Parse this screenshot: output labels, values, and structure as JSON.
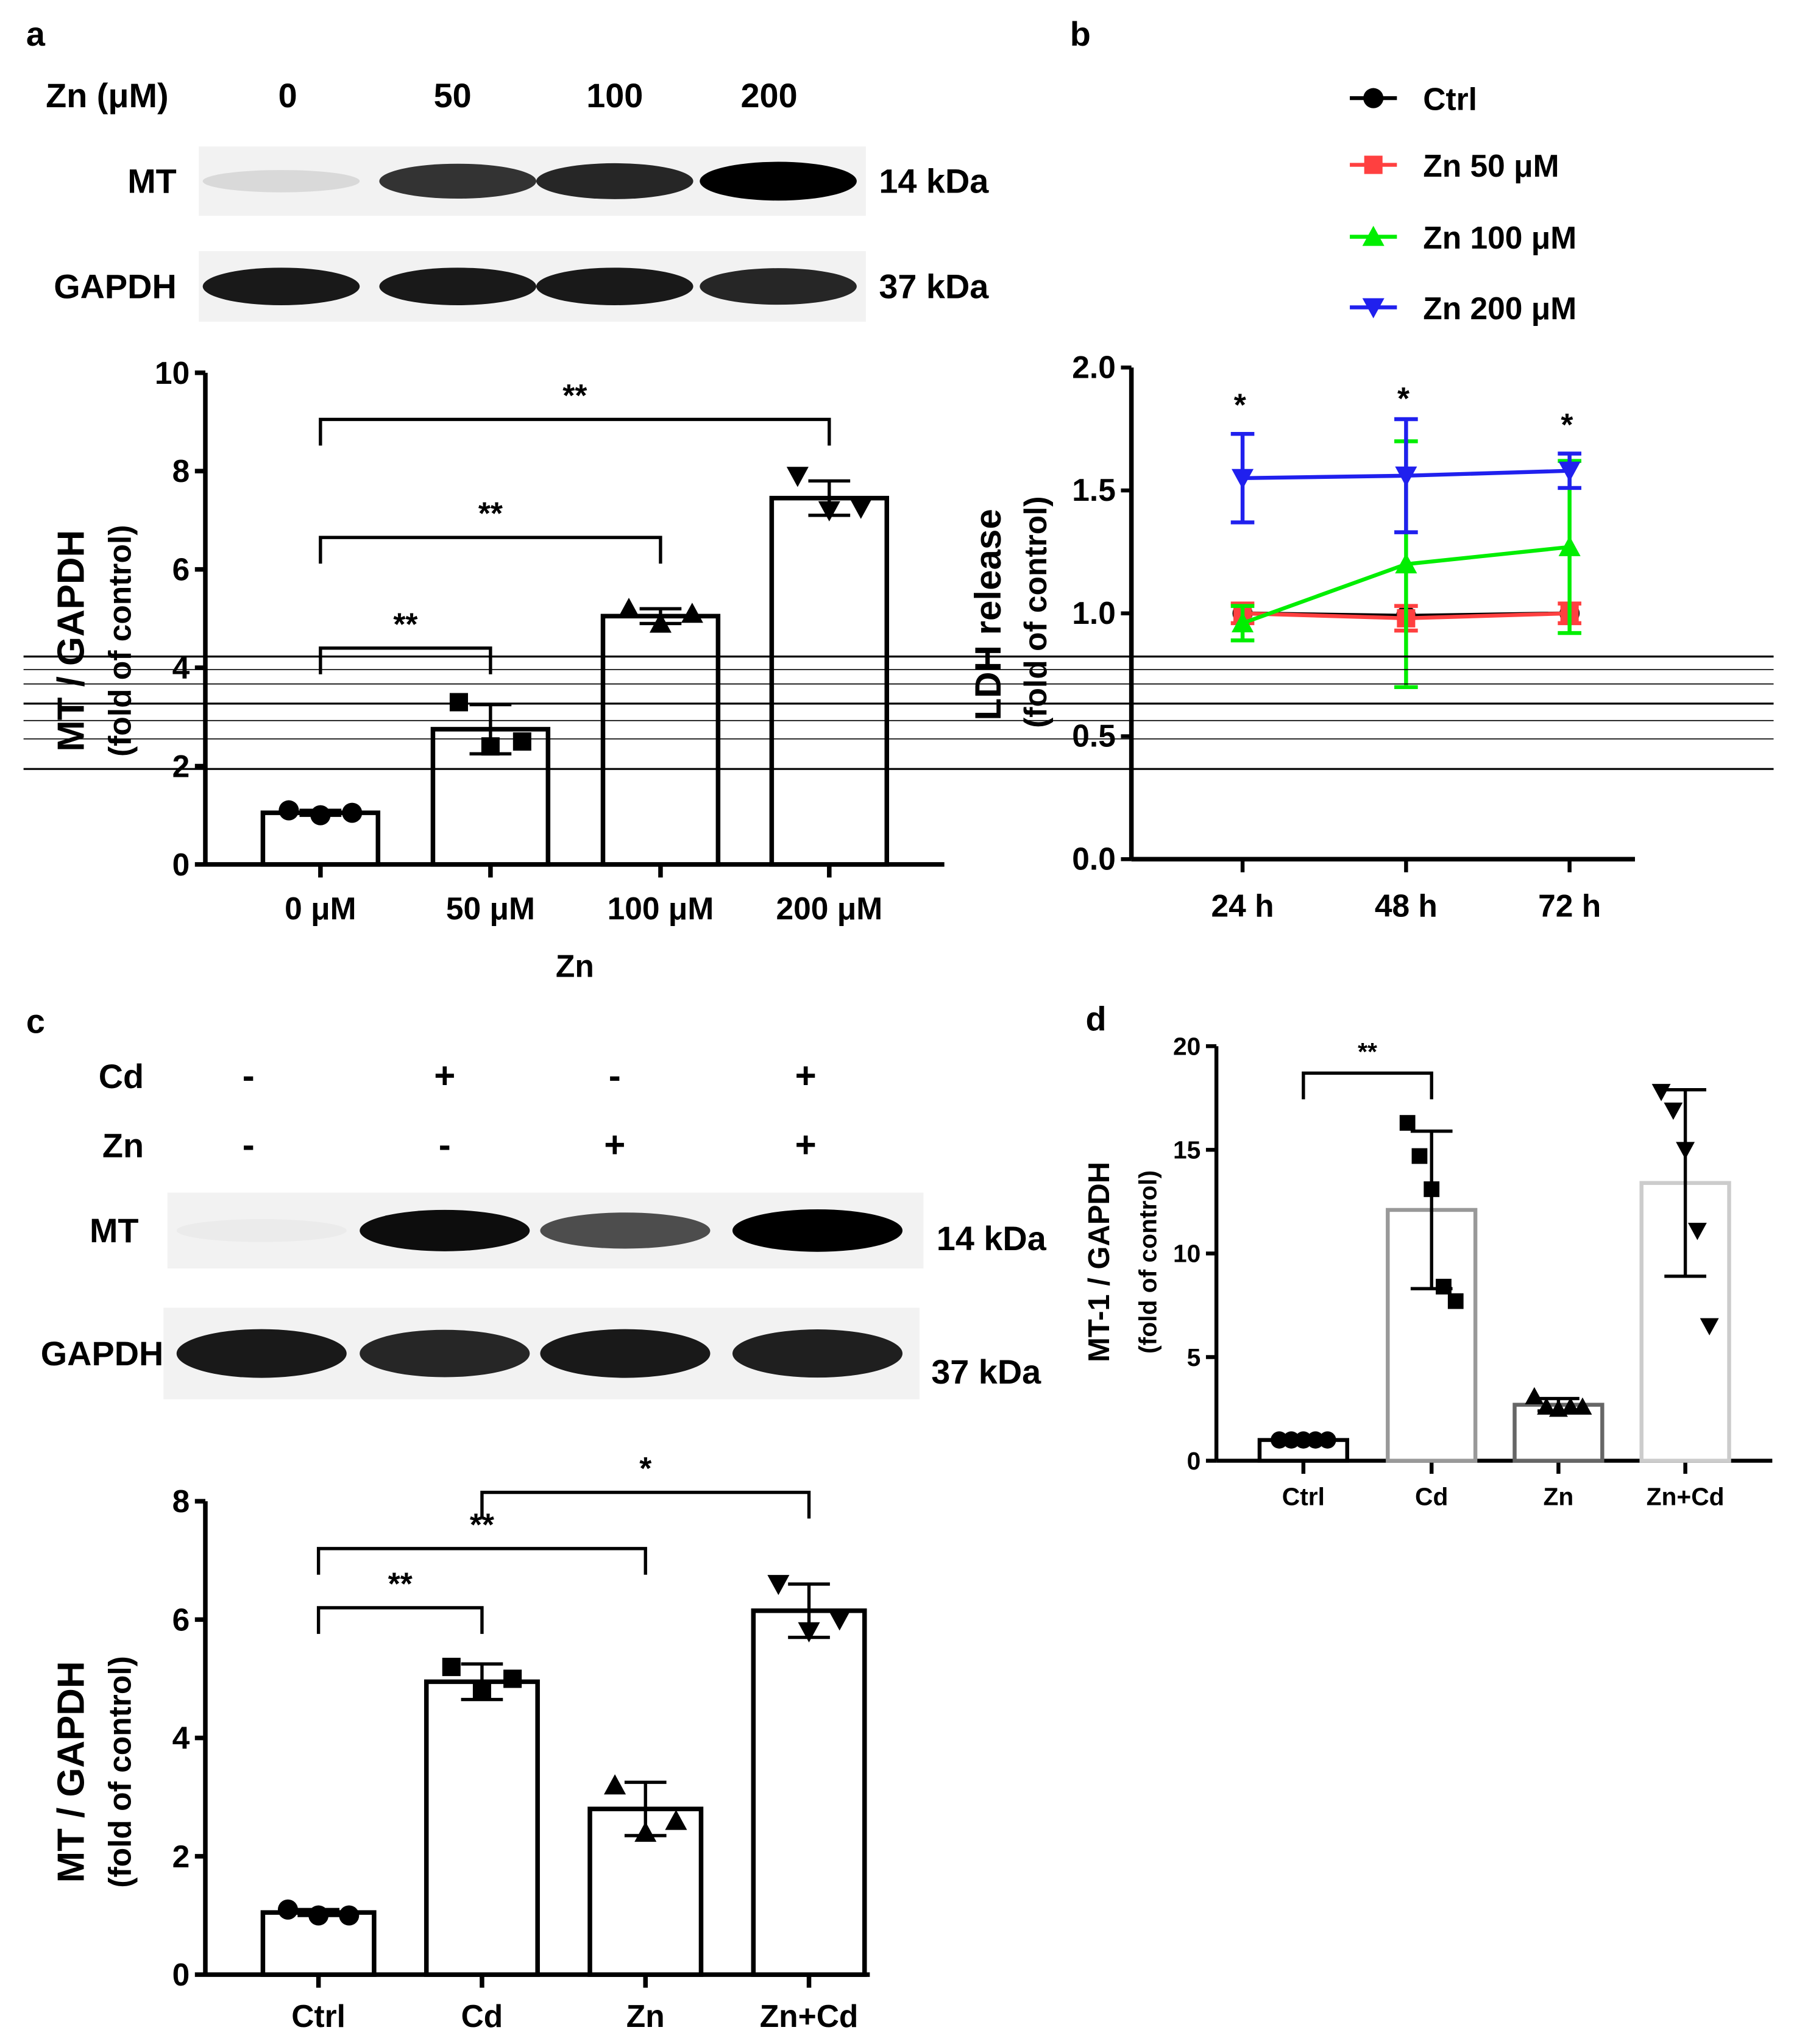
{
  "panel_labels": {
    "a": "a",
    "b": "b",
    "c": "c",
    "d": "d"
  },
  "blot_a": {
    "header_label": "Zn (μM)",
    "lanes": [
      "0",
      "50",
      "100",
      "200"
    ],
    "rows": [
      {
        "label": "MT",
        "kda": "14 kDa",
        "band_intensity": [
          0.15,
          0.8,
          0.85,
          1.0
        ]
      },
      {
        "label": "GAPDH",
        "kda": "37 kDa",
        "band_intensity": [
          0.9,
          0.9,
          0.9,
          0.85
        ]
      }
    ]
  },
  "blot_c": {
    "conditions": [
      {
        "label": "Cd",
        "signs": [
          "-",
          "+",
          "-",
          "+"
        ]
      },
      {
        "label": "Zn",
        "signs": [
          "-",
          "-",
          "+",
          "+"
        ]
      }
    ],
    "rows": [
      {
        "label": "MT",
        "kda": "14 kDa",
        "band_intensity": [
          0.08,
          0.95,
          0.7,
          1.0
        ]
      },
      {
        "label": "GAPDH",
        "kda": "37 kDa",
        "band_intensity": [
          0.9,
          0.85,
          0.9,
          0.88
        ]
      }
    ]
  },
  "colors": {
    "ctrl": "#000000",
    "zn50": "#ff4040",
    "zn100": "#00ee00",
    "zn200": "#2020ee"
  },
  "chart_data": [
    {
      "id": "a",
      "type": "bar",
      "categories": [
        "0 μM",
        "50 μM",
        "100 μM",
        "200 μM"
      ],
      "values": [
        1.05,
        2.75,
        5.05,
        7.45
      ],
      "errors": [
        0.05,
        0.5,
        0.15,
        0.35
      ],
      "points": [
        [
          1.1,
          1.0,
          1.05
        ],
        [
          3.3,
          2.4,
          2.5
        ],
        [
          5.2,
          4.9,
          5.1
        ],
        [
          7.9,
          7.2,
          7.25
        ]
      ],
      "markers": [
        "circle",
        "square",
        "triangle-up",
        "triangle-down"
      ],
      "bar_colors": [
        "#000",
        "#000",
        "#000",
        "#000"
      ],
      "xlabel": "Zn",
      "ylabel": "MT / GAPDH",
      "ylabel2": "(fold of control)",
      "ylim": [
        0,
        10
      ],
      "yticks": [
        "0",
        "2",
        "4",
        "6",
        "8",
        "10"
      ],
      "ytick_values": [
        0,
        2,
        4,
        6,
        8,
        10
      ],
      "significance": [
        {
          "from": 0,
          "to": 1,
          "level": 4.4,
          "label": "**"
        },
        {
          "from": 0,
          "to": 2,
          "level": 6.65,
          "label": "**"
        },
        {
          "from": 0,
          "to": 3,
          "level": 9.05,
          "label": "**"
        }
      ]
    },
    {
      "id": "b",
      "type": "line",
      "x": [
        "24 h",
        "48 h",
        "72 h"
      ],
      "ylabel": "LDH release",
      "ylabel2": "(fold of control)",
      "ylim": [
        0,
        2
      ],
      "yticks": [
        "0.0",
        "0.5",
        "1.0",
        "1.5",
        "2.0"
      ],
      "ytick_values": [
        0,
        0.5,
        1,
        1.5,
        2
      ],
      "legend_position": "top-right",
      "series": [
        {
          "name": "Ctrl",
          "color": "#000000",
          "marker": "circle",
          "values": [
            1.0,
            0.99,
            1.0
          ],
          "errors": [
            0.0,
            0.0,
            0.0
          ]
        },
        {
          "name": "Zn 50 μM",
          "color": "#ff4040",
          "marker": "square",
          "values": [
            1.0,
            0.98,
            1.0
          ],
          "errors": [
            0.04,
            0.05,
            0.04
          ]
        },
        {
          "name": "Zn 100 μM",
          "color": "#00ee00",
          "marker": "triangle-up",
          "values": [
            0.96,
            1.2,
            1.27
          ],
          "errors": [
            0.07,
            0.5,
            0.35
          ]
        },
        {
          "name": "Zn 200 μM",
          "color": "#2020ee",
          "marker": "triangle-down",
          "values": [
            1.55,
            1.56,
            1.58
          ],
          "errors": [
            0.18,
            0.23,
            0.07
          ]
        }
      ],
      "annotations": [
        {
          "x": "24 h",
          "label": "*"
        },
        {
          "x": "48 h",
          "label": "*"
        },
        {
          "x": "72 h",
          "label": "*"
        }
      ]
    },
    {
      "id": "c",
      "type": "bar",
      "categories": [
        "Ctrl",
        "Cd",
        "Zn",
        "Zn+Cd"
      ],
      "values": [
        1.05,
        4.95,
        2.8,
        6.15
      ],
      "errors": [
        0.05,
        0.3,
        0.45,
        0.45
      ],
      "points": [
        [
          1.1,
          1.0,
          1.0
        ],
        [
          5.2,
          4.8,
          5.0
        ],
        [
          3.2,
          2.4,
          2.6
        ],
        [
          6.6,
          5.8,
          6.0
        ]
      ],
      "markers": [
        "circle",
        "square",
        "triangle-up",
        "triangle-down"
      ],
      "bar_colors": [
        "#000",
        "#000",
        "#000",
        "#000"
      ],
      "xlabel": "",
      "ylabel": "MT / GAPDH",
      "ylabel2": "(fold of control)",
      "ylim": [
        0,
        8
      ],
      "yticks": [
        "0",
        "2",
        "4",
        "6",
        "8"
      ],
      "ytick_values": [
        0,
        2,
        4,
        6,
        8
      ],
      "significance": [
        {
          "from": 0,
          "to": 1,
          "level": 6.2,
          "label": "**"
        },
        {
          "from": 0,
          "to": 2,
          "level": 7.2,
          "label": "**"
        },
        {
          "from": 1,
          "to": 3,
          "level": 8.15,
          "label": "*"
        }
      ]
    },
    {
      "id": "d",
      "type": "bar",
      "categories": [
        "Ctrl",
        "Cd",
        "Zn",
        "Zn+Cd"
      ],
      "values": [
        1.0,
        12.1,
        2.7,
        13.4
      ],
      "errors": [
        0.05,
        3.8,
        0.3,
        4.5
      ],
      "points": [
        [
          1,
          1,
          1,
          1,
          1
        ],
        [
          16.3,
          14.7,
          13.1,
          8.4,
          7.7
        ],
        [
          3.1,
          2.6,
          2.5,
          2.6,
          2.6
        ],
        [
          17.8,
          16.9,
          15.0,
          11.1,
          6.5
        ]
      ],
      "markers": [
        "circle",
        "square",
        "triangle-up",
        "triangle-down"
      ],
      "bar_colors": [
        "#000000",
        "#999999",
        "#666666",
        "#cccccc"
      ],
      "xlabel": "",
      "ylabel": "MT-1 / GAPDH",
      "ylabel2": "(fold of control)",
      "ylim": [
        0,
        20
      ],
      "yticks": [
        "0",
        "5",
        "10",
        "15",
        "20"
      ],
      "ytick_values": [
        0,
        5,
        10,
        15,
        20
      ],
      "significance": [
        {
          "from": 0,
          "to": 1,
          "level": 18.7,
          "label": "**"
        }
      ]
    }
  ]
}
